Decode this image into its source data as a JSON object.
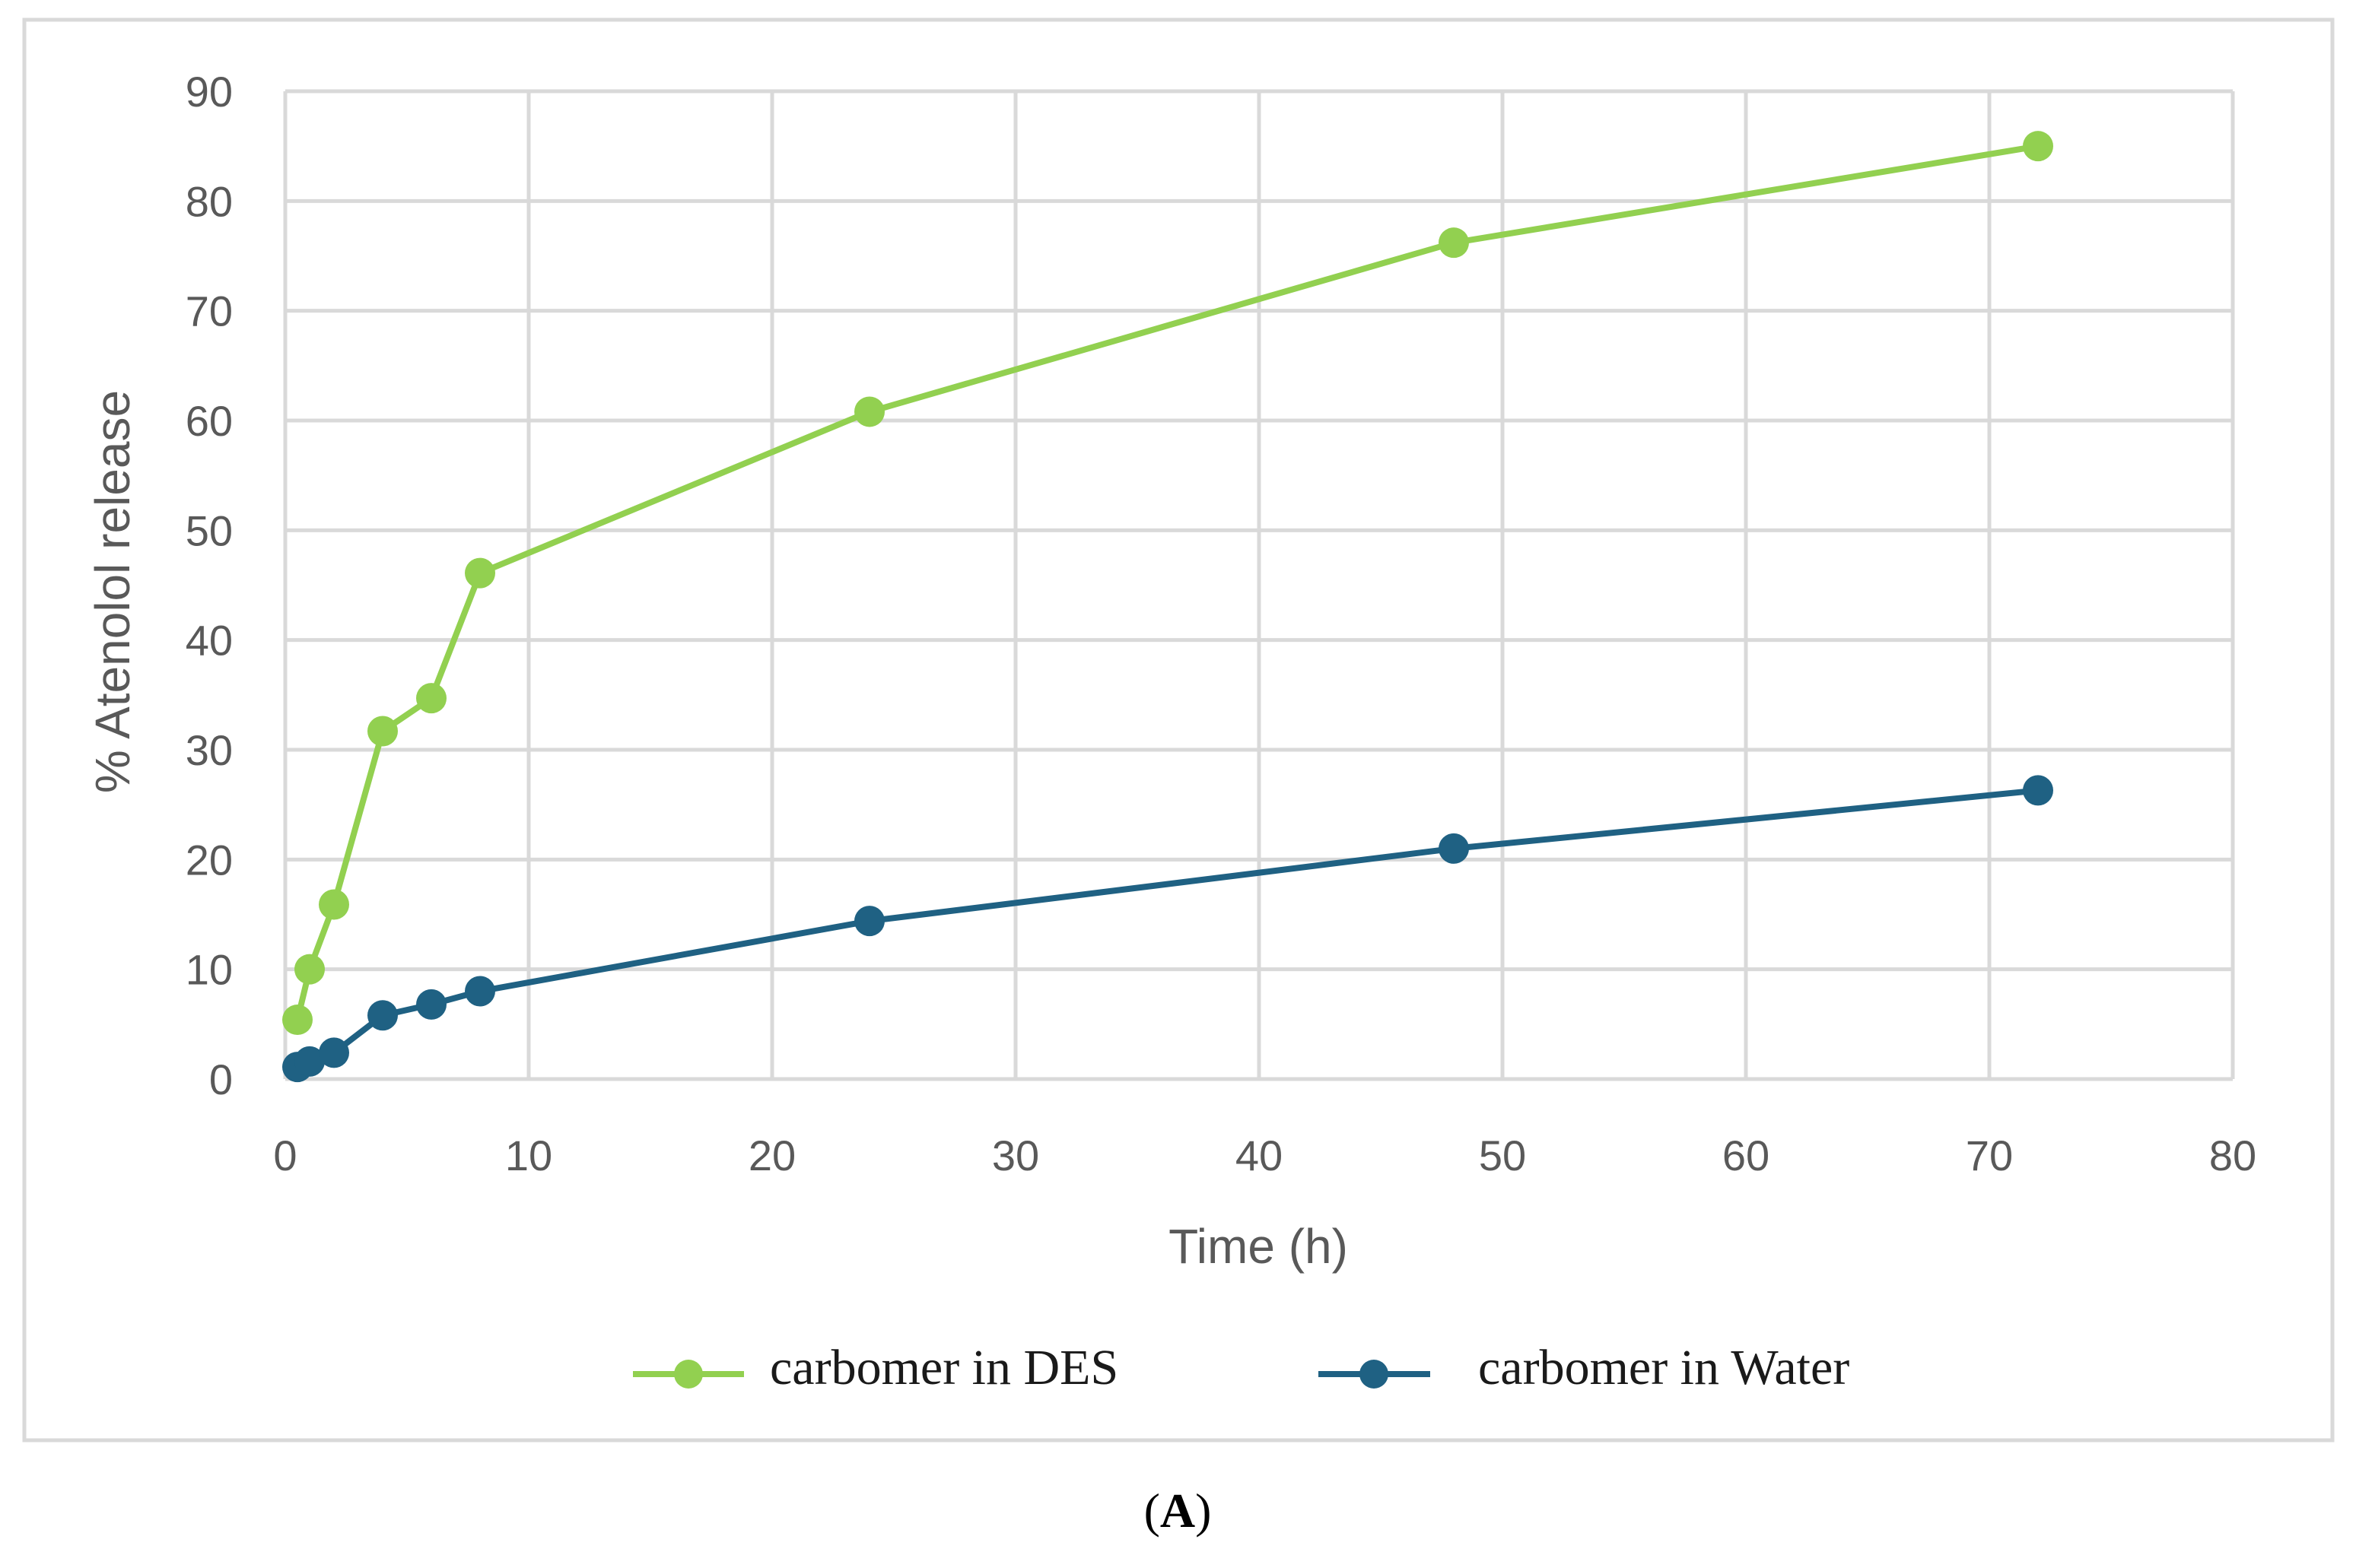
{
  "chart_data": {
    "type": "line",
    "title": "",
    "xlabel": "Time (h)",
    "ylabel": "% Atenolol release",
    "xlim": [
      0,
      80
    ],
    "ylim": [
      0,
      90
    ],
    "xticks": [
      "0",
      "10",
      "20",
      "30",
      "40",
      "50",
      "60",
      "70",
      "80"
    ],
    "yticks": [
      "0",
      "10",
      "20",
      "30",
      "40",
      "50",
      "60",
      "70",
      "80",
      "90"
    ],
    "grid": true,
    "legend_position": "bottom",
    "series": [
      {
        "name": "carbomer in DES",
        "color": "#92d050",
        "x": [
          0.5,
          1,
          2,
          4,
          6,
          8,
          24,
          48,
          72
        ],
        "y": [
          5.4,
          10.0,
          15.9,
          31.7,
          34.7,
          46.1,
          60.8,
          76.2,
          85.0
        ]
      },
      {
        "name": "carbomer in Water",
        "color": "#1f6183",
        "x": [
          0.5,
          1,
          2,
          4,
          6,
          8,
          24,
          48,
          72
        ],
        "y": [
          1.1,
          1.6,
          2.4,
          5.8,
          6.8,
          8.0,
          14.4,
          21.0,
          26.3
        ]
      }
    ]
  },
  "caption": {
    "open": "(",
    "letter": "A",
    "close": ")"
  },
  "colors": {
    "grid": "#d9d9d9",
    "frame": "#d9d9d9",
    "axis_text": "#595959"
  }
}
